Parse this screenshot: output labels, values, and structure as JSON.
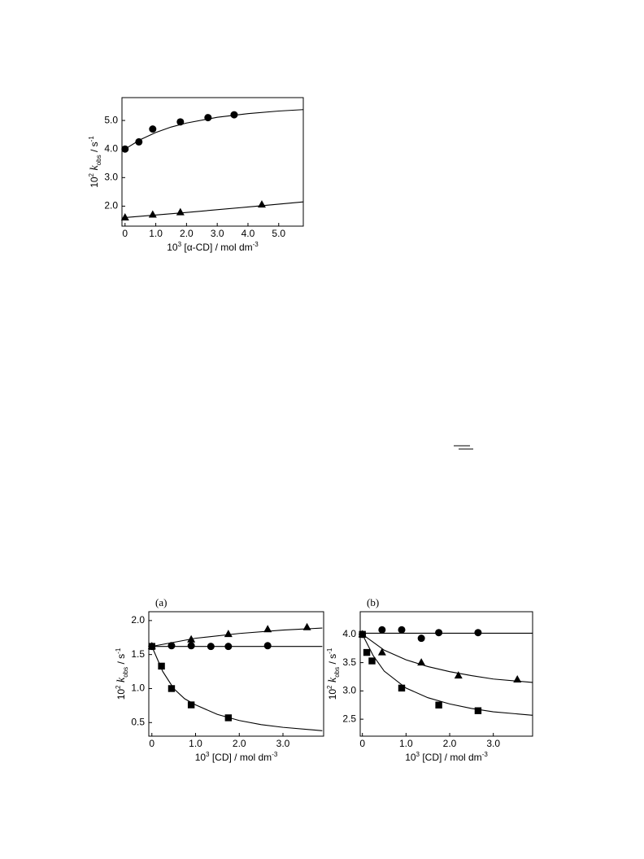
{
  "chart_data": [
    {
      "type": "scatter",
      "color": "#000000",
      "xlabel": [
        {
          "text": "10",
          "style": "normal"
        },
        {
          "text": "3",
          "style": "sup"
        },
        {
          "text": " [α-CD] / mol dm",
          "style": "normal"
        },
        {
          "text": "-3",
          "style": "sup"
        }
      ],
      "ylabel": [
        {
          "text": "10",
          "style": "normal"
        },
        {
          "text": "2",
          "style": "sup"
        },
        {
          "text": " k",
          "style": "italic"
        },
        {
          "text": "obs",
          "style": "sub"
        },
        {
          "text": " / s",
          "style": "normal"
        },
        {
          "text": "-1",
          "style": "sup"
        }
      ],
      "xlim": [
        -0.1,
        5.8
      ],
      "ylim": [
        1.3,
        5.8
      ],
      "xticks": [
        0,
        {
          "value": 1,
          "label": "1.0"
        },
        {
          "value": 2,
          "label": "2.0"
        },
        {
          "value": 3,
          "label": "3.0"
        },
        {
          "value": 4,
          "label": "4.0"
        },
        {
          "value": 5,
          "label": "5.0"
        }
      ],
      "yticks": [
        {
          "value": 2,
          "label": "2.0"
        },
        {
          "value": 3,
          "label": "3.0"
        },
        {
          "value": 4,
          "label": "4.0"
        },
        {
          "value": 5,
          "label": "5.0"
        }
      ],
      "series": [
        {
          "marker": "circle",
          "x": [
            0,
            0.45,
            0.9,
            1.8,
            2.7,
            3.55
          ],
          "values": [
            4.0,
            4.25,
            4.7,
            4.95,
            5.1,
            5.2
          ]
        },
        {
          "marker": "triangle",
          "x": [
            0,
            0.9,
            1.8,
            4.45
          ],
          "values": [
            1.6,
            1.7,
            1.78,
            2.05
          ]
        },
        {
          "marker": "none",
          "x": [
            0,
            0.5,
            1,
            1.5,
            2,
            3,
            4,
            5,
            5.8
          ],
          "values": [
            4.0,
            4.33,
            4.58,
            4.77,
            4.91,
            5.11,
            5.24,
            5.33,
            5.38
          ]
        },
        {
          "marker": "none",
          "x": [
            0,
            2,
            4,
            5.8
          ],
          "values": [
            1.6,
            1.78,
            1.97,
            2.15
          ]
        }
      ]
    },
    {
      "type": "scatter",
      "color": "#000000",
      "title": "(a)",
      "xlabel": [
        {
          "text": "10",
          "style": "normal"
        },
        {
          "text": "3",
          "style": "sup"
        },
        {
          "text": " [CD] / mol dm",
          "style": "normal"
        },
        {
          "text": "-3",
          "style": "sup"
        }
      ],
      "ylabel": [
        {
          "text": "10",
          "style": "normal"
        },
        {
          "text": "2",
          "style": "sup"
        },
        {
          "text": " k",
          "style": "italic"
        },
        {
          "text": "obs",
          "style": "sub"
        },
        {
          "text": " / s",
          "style": "normal"
        },
        {
          "text": "-1",
          "style": "sup"
        }
      ],
      "xlim": [
        -0.07,
        3.93
      ],
      "ylim": [
        0.3,
        2.13
      ],
      "xticks": [
        0,
        {
          "value": 1,
          "label": "1.0"
        },
        {
          "value": 2,
          "label": "2.0"
        },
        {
          "value": 3,
          "label": "3.0"
        }
      ],
      "yticks": [
        0.5,
        {
          "value": 1,
          "label": "1.0"
        },
        1.5,
        {
          "value": 2,
          "label": "2.0"
        }
      ],
      "series": [
        {
          "marker": "triangle",
          "x": [
            0,
            0.9,
            1.75,
            2.65,
            3.55
          ],
          "values": [
            1.62,
            1.72,
            1.8,
            1.87,
            1.9
          ]
        },
        {
          "marker": "circle",
          "x": [
            0,
            0.45,
            0.9,
            1.35,
            1.75,
            2.65
          ],
          "values": [
            1.62,
            1.63,
            1.63,
            1.62,
            1.62,
            1.63
          ]
        },
        {
          "marker": "square",
          "x": [
            0,
            0.22,
            0.45,
            0.9,
            1.75
          ],
          "values": [
            1.62,
            1.33,
            1.0,
            0.76,
            0.57
          ]
        },
        {
          "marker": "none",
          "x": [
            0,
            1,
            2,
            3,
            3.9
          ],
          "values": [
            1.62,
            1.74,
            1.81,
            1.86,
            1.89
          ]
        },
        {
          "marker": "none",
          "x": [
            0,
            3.9
          ],
          "values": [
            1.62,
            1.62
          ]
        },
        {
          "marker": "none",
          "x": [
            0,
            0.25,
            0.5,
            0.75,
            1,
            1.5,
            2,
            2.5,
            3,
            3.9
          ],
          "values": [
            1.62,
            1.25,
            1.0,
            0.85,
            0.76,
            0.62,
            0.53,
            0.47,
            0.43,
            0.38
          ]
        }
      ]
    },
    {
      "type": "scatter",
      "color": "#000000",
      "title": "(b)",
      "xlabel": [
        {
          "text": "10",
          "style": "normal"
        },
        {
          "text": "3",
          "style": "sup"
        },
        {
          "text": " [CD] / mol dm",
          "style": "normal"
        },
        {
          "text": "-3",
          "style": "sup"
        }
      ],
      "ylabel": [
        {
          "text": "10",
          "style": "normal"
        },
        {
          "text": "2",
          "style": "sup"
        },
        {
          "text": " k",
          "style": "italic"
        },
        {
          "text": "obs",
          "style": "sub"
        },
        {
          "text": " / s",
          "style": "normal"
        },
        {
          "text": "-1",
          "style": "sup"
        }
      ],
      "xlim": [
        -0.05,
        3.9
      ],
      "ylim": [
        2.2,
        4.4
      ],
      "xticks": [
        0,
        {
          "value": 1,
          "label": "1.0"
        },
        {
          "value": 2,
          "label": "2.0"
        },
        {
          "value": 3,
          "label": "3.0"
        }
      ],
      "yticks": [
        2.5,
        {
          "value": 3,
          "label": "3.0"
        },
        3.5,
        {
          "value": 4,
          "label": "4.0"
        }
      ],
      "series": [
        {
          "marker": "circle",
          "x": [
            0,
            0.45,
            0.9,
            1.35,
            1.75,
            2.65
          ],
          "values": [
            4.0,
            4.08,
            4.08,
            3.93,
            4.03,
            4.03
          ]
        },
        {
          "marker": "triangle",
          "x": [
            0,
            0.45,
            1.35,
            2.2,
            3.55
          ],
          "values": [
            4.0,
            3.68,
            3.5,
            3.27,
            3.2
          ]
        },
        {
          "marker": "square",
          "x": [
            0,
            0.1,
            0.22,
            0.9,
            1.75,
            2.65
          ],
          "values": [
            4.0,
            3.68,
            3.53,
            3.05,
            2.75,
            2.65
          ]
        },
        {
          "marker": "none",
          "x": [
            0,
            3.9
          ],
          "values": [
            4.02,
            4.02
          ]
        },
        {
          "marker": "none",
          "x": [
            0,
            0.5,
            1,
            1.5,
            2,
            2.5,
            3,
            3.9
          ],
          "values": [
            4.0,
            3.72,
            3.55,
            3.43,
            3.34,
            3.27,
            3.21,
            3.15
          ]
        },
        {
          "marker": "none",
          "x": [
            0,
            0.25,
            0.5,
            1,
            1.5,
            2,
            2.5,
            3,
            3.9
          ],
          "values": [
            4.0,
            3.62,
            3.35,
            3.05,
            2.88,
            2.77,
            2.69,
            2.63,
            2.57
          ]
        }
      ]
    }
  ]
}
